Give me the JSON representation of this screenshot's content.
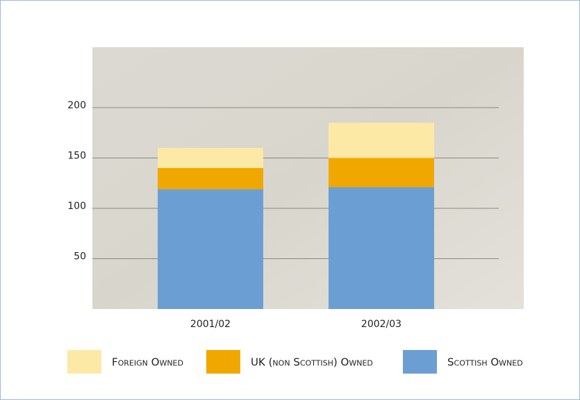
{
  "chart_data": {
    "type": "stacked_bar",
    "categories": [
      "2001/02",
      "2002/03"
    ],
    "series": [
      {
        "name": "Scottish Owned",
        "color": "#6b9fd4",
        "values": [
          119,
          121
        ]
      },
      {
        "name": "UK (non Scottish) Owned",
        "color": "#f0a800",
        "values": [
          21,
          29
        ]
      },
      {
        "name": "Foreign Owned",
        "color": "#fde9a6",
        "values": [
          20,
          35
        ]
      }
    ],
    "legend_order": [
      2,
      1,
      0
    ],
    "ylim": [
      0,
      260
    ],
    "yticks": [
      50,
      100,
      150,
      200
    ],
    "grid": true
  }
}
